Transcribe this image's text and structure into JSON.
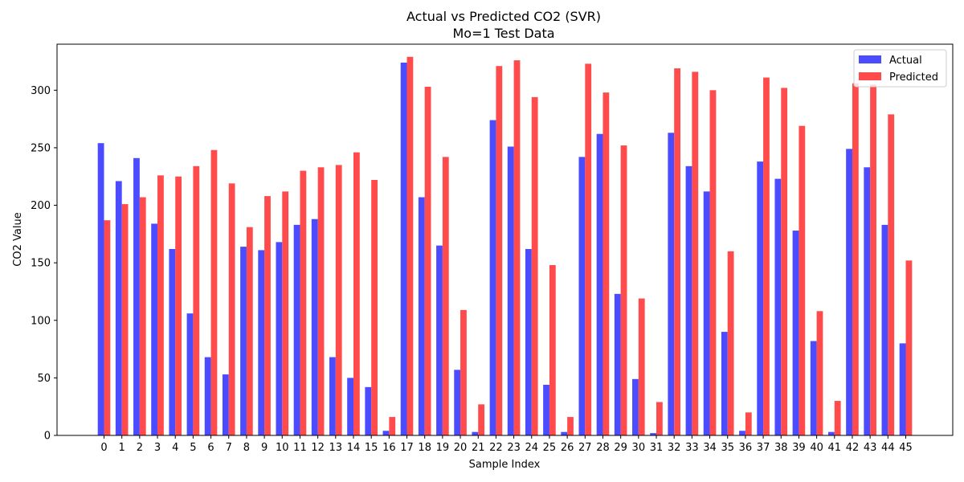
{
  "chart_data": {
    "type": "bar",
    "title": "Actual vs Predicted CO2 (SVR)",
    "subtitle": "Mo=1 Test Data",
    "xlabel": "Sample Index",
    "ylabel": "CO2 Value",
    "ylim": [
      0,
      340
    ],
    "yticks": [
      0,
      50,
      100,
      150,
      200,
      250,
      300
    ],
    "grid": false,
    "legend_position": "top-right",
    "categories": [
      "0",
      "1",
      "2",
      "3",
      "4",
      "5",
      "6",
      "7",
      "8",
      "9",
      "10",
      "11",
      "12",
      "13",
      "14",
      "15",
      "16",
      "17",
      "18",
      "19",
      "20",
      "21",
      "22",
      "23",
      "24",
      "25",
      "26",
      "27",
      "28",
      "29",
      "30",
      "31",
      "32",
      "33",
      "34",
      "35",
      "36",
      "37",
      "38",
      "39",
      "40",
      "41",
      "42",
      "43",
      "44",
      "45"
    ],
    "series": [
      {
        "name": "Actual",
        "color": "#4B4BFF",
        "values": [
          254,
          221,
          241,
          184,
          162,
          106,
          68,
          53,
          164,
          161,
          168,
          183,
          188,
          68,
          50,
          42,
          4,
          324,
          207,
          165,
          57,
          3,
          274,
          251,
          162,
          44,
          3,
          242,
          262,
          123,
          49,
          2,
          263,
          234,
          212,
          90,
          4,
          238,
          223,
          178,
          82,
          3,
          249,
          233,
          183,
          80
        ]
      },
      {
        "name": "Predicted",
        "color": "#FF4B4B",
        "values": [
          187,
          201,
          207,
          226,
          225,
          234,
          248,
          219,
          181,
          208,
          212,
          230,
          233,
          235,
          246,
          222,
          16,
          329,
          303,
          242,
          109,
          27,
          321,
          326,
          294,
          148,
          16,
          323,
          298,
          252,
          119,
          29,
          319,
          316,
          300,
          160,
          20,
          311,
          302,
          269,
          108,
          30,
          306,
          305,
          279,
          152
        ]
      }
    ]
  }
}
